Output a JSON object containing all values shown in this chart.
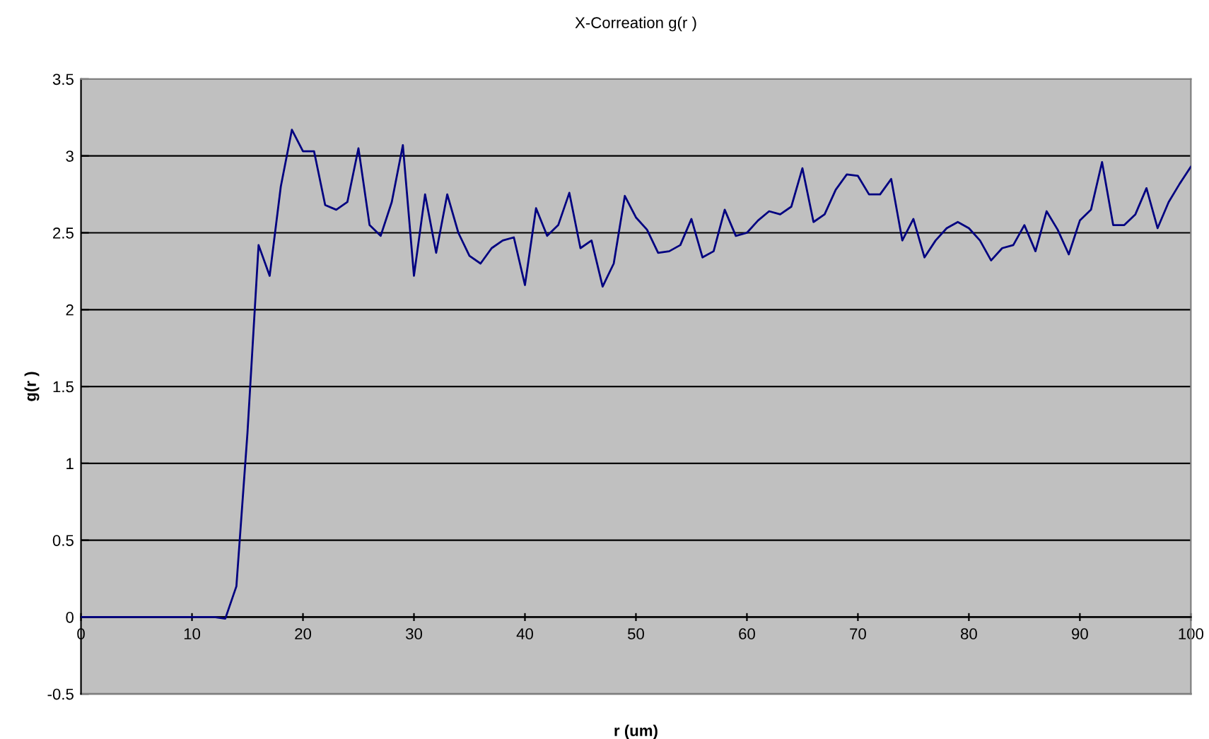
{
  "chart_data": {
    "type": "line",
    "title": "X-Correation g(r )",
    "xlabel": "r (um)",
    "ylabel": "g(r )",
    "x": [
      0,
      10,
      12,
      13,
      14,
      15,
      16,
      17,
      18,
      19,
      20,
      21,
      22,
      23,
      24,
      25,
      26,
      27,
      28,
      29,
      30,
      31,
      32,
      33,
      34,
      35,
      36,
      37,
      38,
      39,
      40,
      41,
      42,
      43,
      44,
      45,
      46,
      47,
      48,
      49,
      50,
      51,
      52,
      53,
      54,
      55,
      56,
      57,
      58,
      59,
      60,
      61,
      62,
      63,
      64,
      65,
      66,
      67,
      68,
      69,
      70,
      71,
      72,
      73,
      74,
      75,
      76,
      77,
      78,
      79,
      80,
      81,
      82,
      83,
      84,
      85,
      86,
      87,
      88,
      89,
      90,
      91,
      92,
      93,
      94,
      95,
      96,
      97,
      98,
      99,
      100
    ],
    "series": [
      {
        "color": "#000080",
        "values": [
          0,
          0,
          0,
          -0.01,
          0.2,
          1.2,
          2.42,
          2.22,
          2.8,
          3.17,
          3.03,
          3.03,
          2.68,
          2.65,
          2.7,
          3.05,
          2.55,
          2.48,
          2.7,
          3.07,
          2.22,
          2.75,
          2.37,
          2.75,
          2.5,
          2.35,
          2.3,
          2.4,
          2.45,
          2.47,
          2.16,
          2.66,
          2.48,
          2.55,
          2.76,
          2.4,
          2.45,
          2.15,
          2.3,
          2.74,
          2.6,
          2.52,
          2.37,
          2.38,
          2.42,
          2.59,
          2.34,
          2.38,
          2.65,
          2.48,
          2.5,
          2.58,
          2.64,
          2.62,
          2.67,
          2.92,
          2.57,
          2.62,
          2.78,
          2.88,
          2.87,
          2.75,
          2.75,
          2.85,
          2.45,
          2.59,
          2.34,
          2.45,
          2.53,
          2.57,
          2.53,
          2.45,
          2.32,
          2.4,
          2.42,
          2.55,
          2.38,
          2.64,
          2.52,
          2.36,
          2.58,
          2.65,
          2.96,
          2.55,
          2.55,
          2.62,
          2.79,
          2.53,
          2.7,
          2.82,
          2.93
        ]
      }
    ],
    "xlim": [
      0,
      100
    ],
    "xticks": [
      0,
      10,
      20,
      30,
      40,
      50,
      60,
      70,
      80,
      90,
      100
    ],
    "ylim": [
      -0.5,
      3.5
    ],
    "yticks": [
      -0.5,
      0,
      0.5,
      1,
      1.5,
      2,
      2.5,
      3,
      3.5
    ],
    "grid": "y",
    "legend": false,
    "marker": "none",
    "line_style": "solid"
  }
}
